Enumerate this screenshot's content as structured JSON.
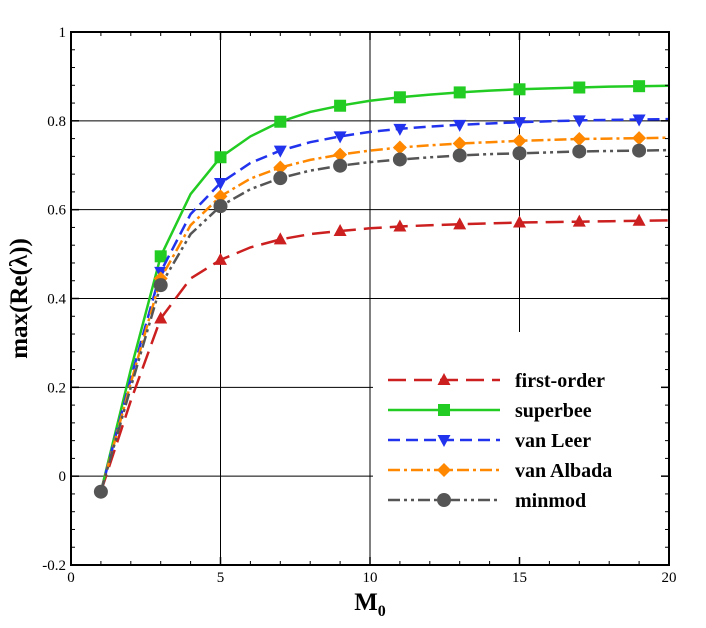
{
  "chart_data": {
    "type": "line",
    "xlabel": "M",
    "xlabel_sub": "0",
    "ylabel": "max(Re(λ))",
    "xlim": [
      0,
      20
    ],
    "ylim": [
      -0.2,
      1
    ],
    "xticks": [
      0,
      5,
      10,
      15,
      20
    ],
    "yticks": [
      -0.2,
      0,
      0.2,
      0.4,
      0.6,
      0.8,
      1
    ],
    "xtick_labels": [
      "0",
      "5",
      "10",
      "15",
      "20"
    ],
    "ytick_labels": [
      "-0.2",
      "0",
      "0.2",
      "0.4",
      "0.6",
      "0.8",
      "1"
    ],
    "grid": true,
    "legend_position": "bottom-right",
    "series": [
      {
        "name": "first-order",
        "color": "#cc1f1f",
        "dash": "long-dash",
        "marker": "triangle-up",
        "x": [
          1,
          2,
          3,
          4,
          5,
          6,
          7,
          8,
          9,
          10,
          11,
          12,
          13,
          14,
          15,
          16,
          17,
          18,
          19,
          20
        ],
        "y": [
          -0.035,
          0.17,
          0.355,
          0.445,
          0.487,
          0.515,
          0.533,
          0.545,
          0.552,
          0.558,
          0.562,
          0.565,
          0.567,
          0.569,
          0.571,
          0.572,
          0.573,
          0.574,
          0.575,
          0.576
        ],
        "marker_x": [
          3,
          5,
          7,
          9,
          11,
          13,
          15,
          17,
          19
        ]
      },
      {
        "name": "superbee",
        "color": "#22cc22",
        "dash": "solid",
        "marker": "square",
        "x": [
          1,
          2,
          3,
          4,
          5,
          6,
          7,
          8,
          9,
          10,
          11,
          12,
          13,
          14,
          15,
          16,
          17,
          18,
          19,
          20
        ],
        "y": [
          -0.035,
          0.24,
          0.495,
          0.635,
          0.718,
          0.765,
          0.798,
          0.82,
          0.834,
          0.845,
          0.853,
          0.859,
          0.864,
          0.868,
          0.871,
          0.873,
          0.875,
          0.877,
          0.878,
          0.879
        ],
        "marker_x": [
          3,
          5,
          7,
          9,
          11,
          13,
          15,
          17,
          19
        ]
      },
      {
        "name": "van Leer",
        "color": "#2233ee",
        "dash": "dash",
        "marker": "triangle-down",
        "x": [
          1,
          2,
          3,
          4,
          5,
          6,
          7,
          8,
          9,
          10,
          11,
          12,
          13,
          14,
          15,
          16,
          17,
          18,
          19,
          20
        ],
        "y": [
          -0.035,
          0.22,
          0.46,
          0.59,
          0.66,
          0.705,
          0.733,
          0.752,
          0.765,
          0.775,
          0.782,
          0.787,
          0.791,
          0.794,
          0.797,
          0.799,
          0.801,
          0.802,
          0.803,
          0.804
        ],
        "marker_x": [
          3,
          5,
          7,
          9,
          11,
          13,
          15,
          17,
          19
        ]
      },
      {
        "name": "van Albada",
        "color": "#ff8800",
        "dash": "dash-dot",
        "marker": "diamond",
        "x": [
          1,
          2,
          3,
          4,
          5,
          6,
          7,
          8,
          9,
          10,
          11,
          12,
          13,
          14,
          15,
          16,
          17,
          18,
          19,
          20
        ],
        "y": [
          -0.035,
          0.21,
          0.445,
          0.565,
          0.63,
          0.67,
          0.695,
          0.712,
          0.724,
          0.733,
          0.74,
          0.745,
          0.749,
          0.752,
          0.755,
          0.757,
          0.759,
          0.76,
          0.761,
          0.762
        ],
        "marker_x": [
          3,
          5,
          7,
          9,
          11,
          13,
          15,
          17,
          19
        ]
      },
      {
        "name": "minmod",
        "color": "#555555",
        "dash": "dash-dot-dot",
        "marker": "circle",
        "x": [
          1,
          2,
          3,
          4,
          5,
          6,
          7,
          8,
          9,
          10,
          11,
          12,
          13,
          14,
          15,
          16,
          17,
          18,
          19,
          20
        ],
        "y": [
          -0.035,
          0.2,
          0.43,
          0.545,
          0.608,
          0.646,
          0.671,
          0.688,
          0.699,
          0.707,
          0.713,
          0.718,
          0.722,
          0.725,
          0.727,
          0.729,
          0.731,
          0.732,
          0.733,
          0.734
        ],
        "marker_x": [
          1,
          3,
          5,
          7,
          9,
          11,
          13,
          15,
          17,
          19
        ]
      }
    ]
  }
}
